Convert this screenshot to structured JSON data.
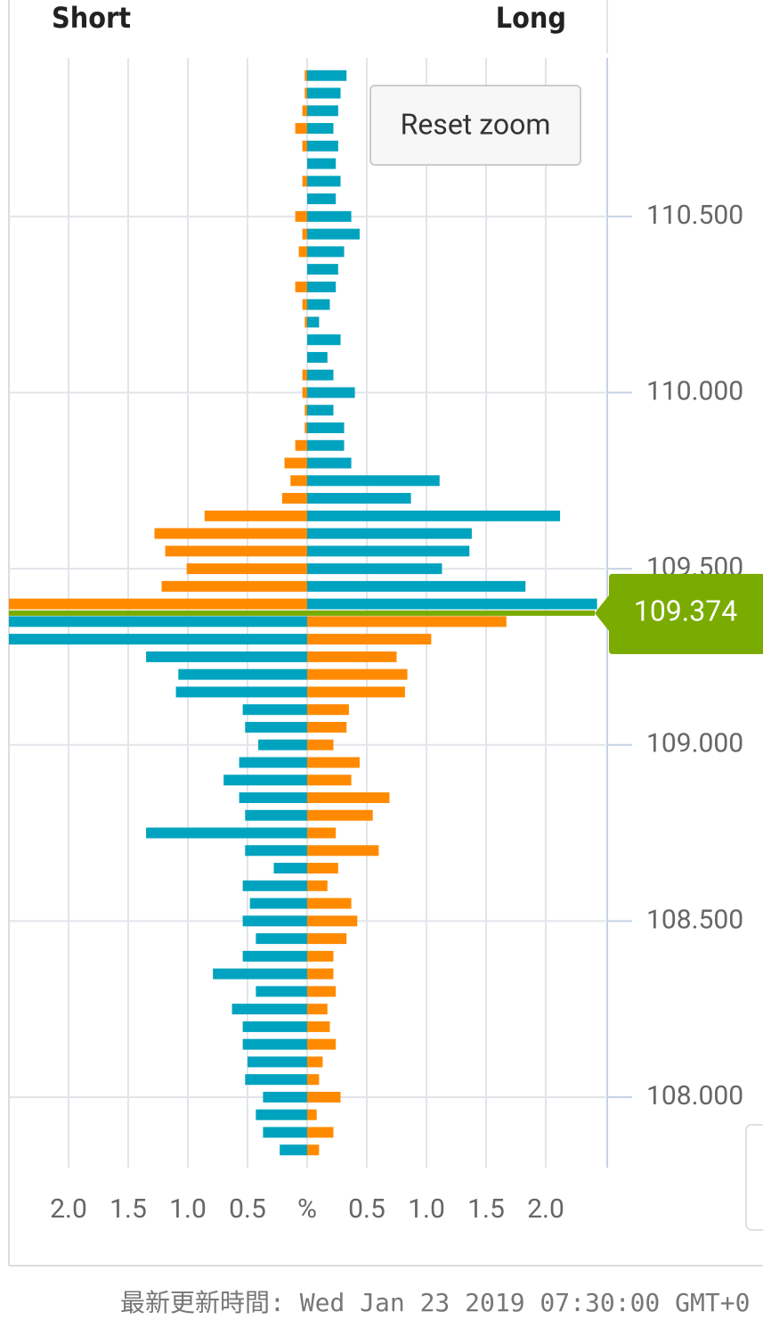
{
  "chart_data": {
    "type": "butterfly",
    "series": [
      {
        "name": "Short",
        "side": "left",
        "color": "#ff8a00",
        "color_below": "#00a3bf",
        "values": [
          0.02,
          0.02,
          0.04,
          0.1,
          0.04,
          0,
          0.04,
          0,
          0.1,
          0.04,
          0.07,
          0,
          0.1,
          0.04,
          0.02,
          0,
          0,
          0.04,
          0.04,
          0.02,
          0.02,
          0.1,
          0.19,
          0.14,
          0.21,
          0.86,
          1.28,
          1.19,
          1.01,
          1.22,
          2.5,
          2.5,
          2.5,
          1.35,
          1.08,
          1.1,
          0.54,
          0.52,
          0.41,
          0.57,
          0.7,
          0.57,
          0.52,
          1.35,
          0.52,
          0.28,
          0.54,
          0.48,
          0.54,
          0.43,
          0.54,
          0.79,
          0.43,
          0.63,
          0.54,
          0.54,
          0.5,
          0.52,
          0.37,
          0.43,
          0.37,
          0.23
        ]
      },
      {
        "name": "Long",
        "side": "right",
        "color": "#00a3bf",
        "color_below": "#ff8a00",
        "values": [
          0.33,
          0.28,
          0.26,
          0.22,
          0.26,
          0.24,
          0.28,
          0.24,
          0.37,
          0.44,
          0.31,
          0.26,
          0.24,
          0.19,
          0.1,
          0.28,
          0.17,
          0.22,
          0.4,
          0.22,
          0.31,
          0.31,
          0.37,
          1.11,
          0.87,
          2.12,
          1.38,
          1.36,
          1.13,
          1.83,
          2.43,
          1.67,
          1.04,
          0.75,
          0.84,
          0.82,
          0.35,
          0.33,
          0.22,
          0.44,
          0.37,
          0.69,
          0.55,
          0.24,
          0.6,
          0.26,
          0.17,
          0.37,
          0.42,
          0.33,
          0.22,
          0.22,
          0.24,
          0.17,
          0.19,
          0.24,
          0.13,
          0.1,
          0.28,
          0.08,
          0.22,
          0.1
        ]
      }
    ],
    "y": [
      110.9,
      110.85,
      110.8,
      110.75,
      110.7,
      110.65,
      110.6,
      110.55,
      110.5,
      110.45,
      110.4,
      110.35,
      110.3,
      110.25,
      110.2,
      110.15,
      110.1,
      110.05,
      110.0,
      109.95,
      109.9,
      109.85,
      109.8,
      109.75,
      109.7,
      109.65,
      109.6,
      109.55,
      109.5,
      109.45,
      109.4,
      109.35,
      109.3,
      109.25,
      109.2,
      109.15,
      109.1,
      109.05,
      109.0,
      108.95,
      108.9,
      108.85,
      108.8,
      108.75,
      108.7,
      108.65,
      108.6,
      108.55,
      108.5,
      108.45,
      108.4,
      108.35,
      108.3,
      108.25,
      108.2,
      108.15,
      108.1,
      108.05,
      108.0,
      107.95,
      107.9,
      107.85
    ],
    "current_price": 109.374,
    "current_color": "#7aab00",
    "xlim": [
      -2.5,
      2.5
    ],
    "xticks": [
      {
        "value": -2,
        "label": "2.0"
      },
      {
        "value": -1.5,
        "label": "1.5"
      },
      {
        "value": -1,
        "label": "1.0"
      },
      {
        "value": -0.5,
        "label": "0.5"
      },
      {
        "value": 0,
        "label": "%"
      },
      {
        "value": 0.5,
        "label": "0.5"
      },
      {
        "value": 1,
        "label": "1.0"
      },
      {
        "value": 1.5,
        "label": "1.5"
      },
      {
        "value": 2,
        "label": "2.0"
      }
    ],
    "ylim": [
      107.8,
      110.95
    ],
    "yticks": [
      {
        "value": 108,
        "label": "108.000"
      },
      {
        "value": 108.5,
        "label": "108.500"
      },
      {
        "value": 109,
        "label": "109.000"
      },
      {
        "value": 109.5,
        "label": "109.500"
      },
      {
        "value": 110,
        "label": "110.000"
      },
      {
        "value": 110.5,
        "label": "110.500"
      }
    ],
    "grid": true,
    "reset_button": "Reset zoom",
    "footer": "最新更新時間: Wed Jan 23 2019 07:30:00 GMT+0"
  }
}
